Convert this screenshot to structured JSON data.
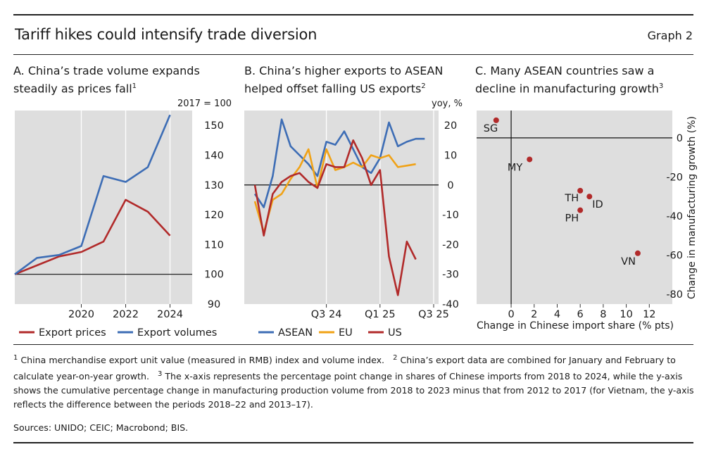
{
  "header": {
    "title": "Tariff hikes could intensify trade diversion",
    "graph_label": "Graph 2"
  },
  "panels": {
    "a": {
      "letter": "A.",
      "title": "China’s trade volume expands steadily as prices fall",
      "note": "1"
    },
    "b": {
      "letter": "B.",
      "title": "China’s higher exports to ASEAN helped offset falling US exports",
      "note": "2"
    },
    "c": {
      "letter": "C.",
      "title": "Many ASEAN countries saw a decline in manufacturing growth",
      "note": "3"
    }
  },
  "chart_data": [
    {
      "id": "a",
      "type": "line",
      "unit_label": "2017 = 100",
      "x": [
        2017,
        2018,
        2019,
        2020,
        2021,
        2022,
        2023,
        2024
      ],
      "xticks": [
        2020,
        2022,
        2024
      ],
      "ylim": [
        90,
        155
      ],
      "yticks": [
        90,
        100,
        110,
        120,
        130,
        140,
        150
      ],
      "baseline": 100,
      "series": [
        {
          "name": "Export prices",
          "color": "#b12a2a",
          "values": [
            100,
            103,
            106,
            107.5,
            111,
            125,
            121,
            113
          ]
        },
        {
          "name": "Export volumes",
          "color": "#3d6db5",
          "values": [
            100,
            105.5,
            106.5,
            109.5,
            133,
            131,
            136,
            153.5
          ]
        }
      ],
      "legend": [
        {
          "label": "Export prices",
          "color": "#b12a2a"
        },
        {
          "label": "Export volumes",
          "color": "#3d6db5"
        }
      ]
    },
    {
      "id": "b",
      "type": "line",
      "unit_label": "yoy, %",
      "x": [
        "Jan 24",
        "Feb 24",
        "Mar 24",
        "Apr 24",
        "May 24",
        "Jun 24",
        "Jul 24",
        "Aug 24",
        "Sep 24",
        "Oct 24",
        "Nov 24",
        "Dec 24",
        "Jan 25",
        "Feb 25",
        "Mar 25",
        "Apr 25",
        "May 25",
        "Jun 25",
        "Jul 25",
        "Aug 25",
        "Sep 25"
      ],
      "xtick_labels": [
        {
          "index": 8,
          "label": "Q3 24"
        },
        {
          "index": 14,
          "label": "Q1 25"
        },
        {
          "index": 20,
          "label": "Q3 25"
        }
      ],
      "ylim": [
        -40,
        25
      ],
      "yticks": [
        -40,
        -30,
        -20,
        -10,
        0,
        10,
        20
      ],
      "baseline": 0,
      "series": [
        {
          "name": "ASEAN",
          "color": "#3d6db5",
          "values": [
            -3,
            -7.5,
            3,
            22,
            13,
            10,
            7,
            3,
            14.5,
            13.5,
            18,
            12,
            6,
            4,
            9,
            21,
            13,
            14.5,
            15.5,
            15.5,
            null
          ]
        },
        {
          "name": "EU",
          "color": "#f0a216",
          "values": [
            -5.5,
            -16,
            -5,
            -3,
            2,
            6,
            12,
            -1,
            12,
            5,
            6,
            7.5,
            6,
            10,
            9,
            10,
            6,
            6.5,
            7,
            null,
            null
          ]
        },
        {
          "name": "US",
          "color": "#b12a2a",
          "values": [
            0,
            -17,
            -3,
            1,
            3,
            4,
            1,
            -1,
            7,
            6,
            6,
            15,
            9,
            0,
            5,
            -24,
            -37,
            -19,
            -25,
            null,
            null
          ]
        }
      ],
      "legend": [
        {
          "label": "ASEAN",
          "color": "#3d6db5"
        },
        {
          "label": "EU",
          "color": "#f0a216"
        },
        {
          "label": "US",
          "color": "#b12a2a"
        }
      ]
    },
    {
      "id": "c",
      "type": "scatter",
      "xlabel": "Change in Chinese import share (% pts)",
      "ylabel": "Change in manufacturing growth (%)",
      "xlim": [
        -3,
        14
      ],
      "ylim": [
        -85,
        14
      ],
      "xticks": [
        0,
        2,
        4,
        6,
        8,
        10,
        12
      ],
      "yticks": [
        0,
        -20,
        -40,
        -60,
        -80
      ],
      "points": [
        {
          "label": "SG",
          "x": -1.3,
          "y": 9,
          "color": "#b12a2a"
        },
        {
          "label": "MY",
          "x": 1.6,
          "y": -11,
          "color": "#b12a2a"
        },
        {
          "label": "TH",
          "x": 6.0,
          "y": -27,
          "color": "#b12a2a"
        },
        {
          "label": "ID",
          "x": 6.8,
          "y": -30,
          "color": "#b12a2a"
        },
        {
          "label": "PH",
          "x": 6.0,
          "y": -37,
          "color": "#b12a2a"
        },
        {
          "label": "VN",
          "x": 11.0,
          "y": -59,
          "color": "#b12a2a"
        }
      ]
    }
  ],
  "footnotes": {
    "note1_mark": "1",
    "note1": "China merchandise export unit value (measured in RMB) index and volume index.",
    "note2_mark": "2",
    "note2": "China’s export data are combined for January and February to calculate year-on-year growth.",
    "note3_mark": "3",
    "note3": "The x-axis represents the percentage point change in shares of Chinese imports from 2018 to 2024, while the y-axis shows the cumulative percentage change in manufacturing production volume from 2018 to 2023 minus that from 2012 to 2017 (for Vietnam, the y-axis reflects the difference between the periods 2018–22 and 2013–17).",
    "sources": "Sources: UNIDO; CEIC; Macrobond; BIS."
  },
  "colors": {
    "plot_bg": "#dedede",
    "rule": "#222222"
  }
}
